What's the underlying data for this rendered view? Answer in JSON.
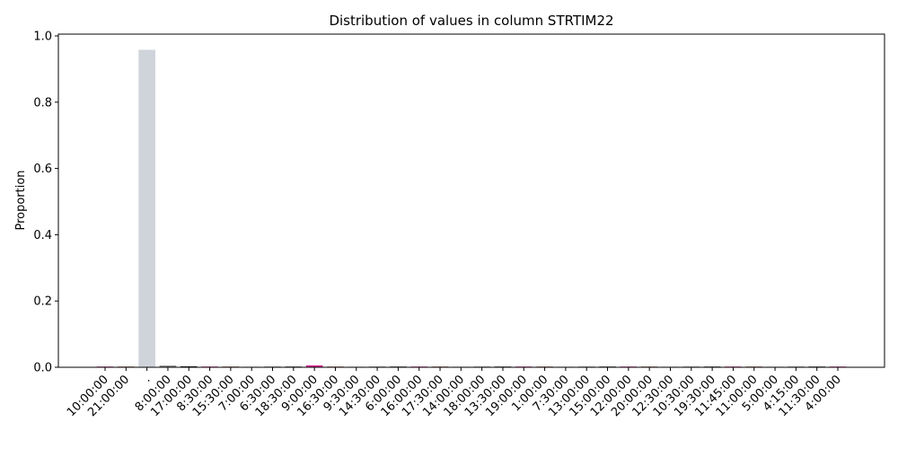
{
  "chart_data": {
    "type": "bar",
    "title": "Distribution of values in column STRTIM22",
    "xlabel": "",
    "ylabel": "Proportion",
    "ylim": [
      0,
      1.0
    ],
    "yticks": [
      "0.0",
      "0.2",
      "0.4",
      "0.6",
      "0.8",
      "1.0"
    ],
    "grid": false,
    "categories": [
      "10:00:00",
      "21:00:00",
      ".",
      "8:00:00",
      "17:00:00",
      "8:30:00",
      "15:30:00",
      "7:00:00",
      "6:30:00",
      "18:30:00",
      "9:00:00",
      "16:30:00",
      "9:30:00",
      "14:30:00",
      "6:00:00",
      "16:00:00",
      "17:30:00",
      "14:00:00",
      "18:00:00",
      "13:30:00",
      "19:00:00",
      "1:00:00",
      "7:30:00",
      "13:00:00",
      "15:00:00",
      "12:00:00",
      "20:00:00",
      "12:30:00",
      "10:30:00",
      "19:30:00",
      "11:45:00",
      "11:00:00",
      "5:00:00",
      "4:15:00",
      "11:30:00",
      "4:00:00"
    ],
    "values": [
      0.001,
      0.0003,
      0.958,
      0.005,
      0.003,
      0.002,
      0.0008,
      0.0008,
      0.001,
      0.002,
      0.006,
      0.0005,
      0.0005,
      0.001,
      0.002,
      0.001,
      0.0005,
      0.0005,
      0.001,
      0.002,
      0.001,
      0.0005,
      0.0005,
      0.001,
      0.002,
      0.001,
      0.0005,
      0.0005,
      0.001,
      0.002,
      0.001,
      0.0005,
      0.0005,
      0.001,
      0.002,
      0.001
    ],
    "colors": [
      "#d62790",
      "#8c564b",
      "#cfd3da",
      "#7f7f7f",
      "#1f1f1f",
      "#d62790",
      "#8c564b",
      "#cfd3da",
      "#7f7f7f",
      "#1f1f1f",
      "#d62790",
      "#8c564b",
      "#cfd3da",
      "#7f7f7f",
      "#1f1f1f",
      "#d62790",
      "#8c564b",
      "#cfd3da",
      "#7f7f7f",
      "#1f1f1f",
      "#d62790",
      "#8c564b",
      "#cfd3da",
      "#7f7f7f",
      "#1f1f1f",
      "#d62790",
      "#8c564b",
      "#cfd3da",
      "#7f7f7f",
      "#1f1f1f",
      "#d62790",
      "#8c564b",
      "#cfd3da",
      "#7f7f7f",
      "#1f1f1f",
      "#d62790"
    ]
  }
}
